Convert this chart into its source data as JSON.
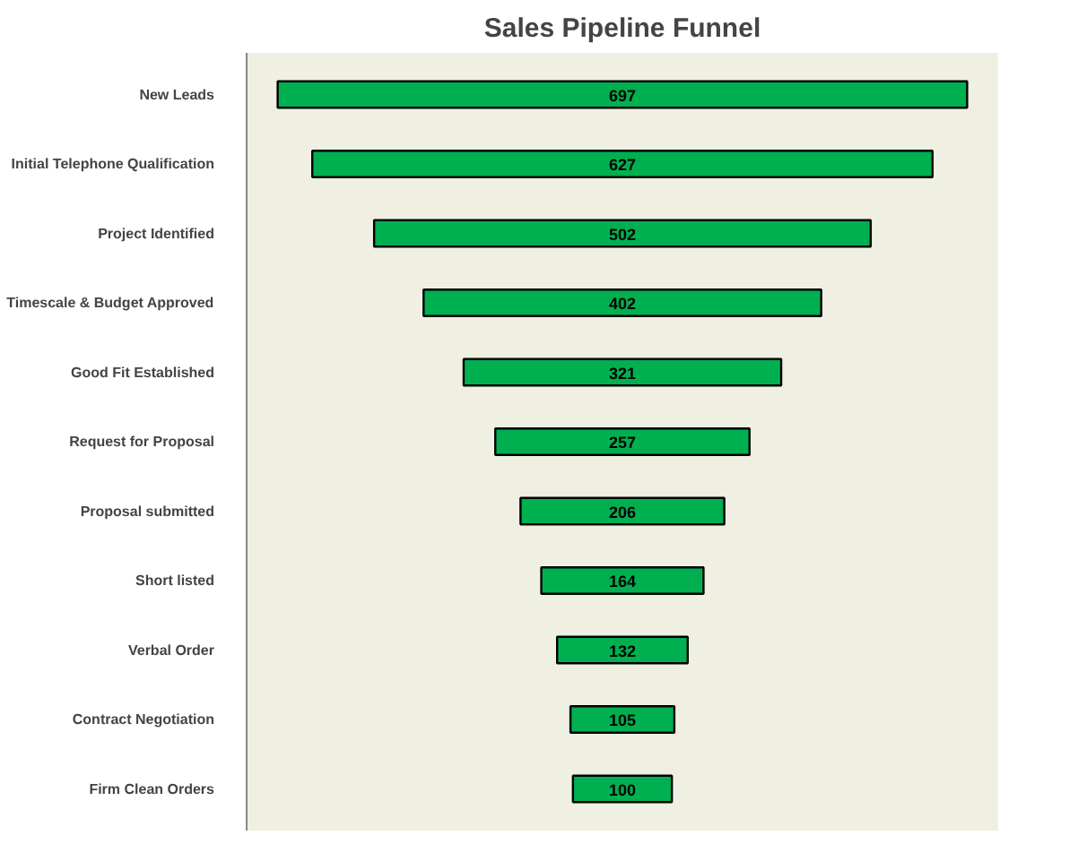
{
  "chart_data": {
    "type": "other",
    "title": "Sales Pipeline Funnel",
    "categories": [
      "New Leads",
      "Initial Telephone Qualification",
      "Project Identified",
      "Timescale & Budget Approved",
      "Good Fit Established",
      "Request for Proposal",
      "Proposal submitted",
      "Short listed",
      "Verbal Order",
      "Contract Negotiation",
      "Firm Clean Orders"
    ],
    "values": [
      697,
      627,
      502,
      402,
      321,
      257,
      206,
      164,
      132,
      105,
      100
    ],
    "color": "#00b050",
    "data_labels": true
  }
}
